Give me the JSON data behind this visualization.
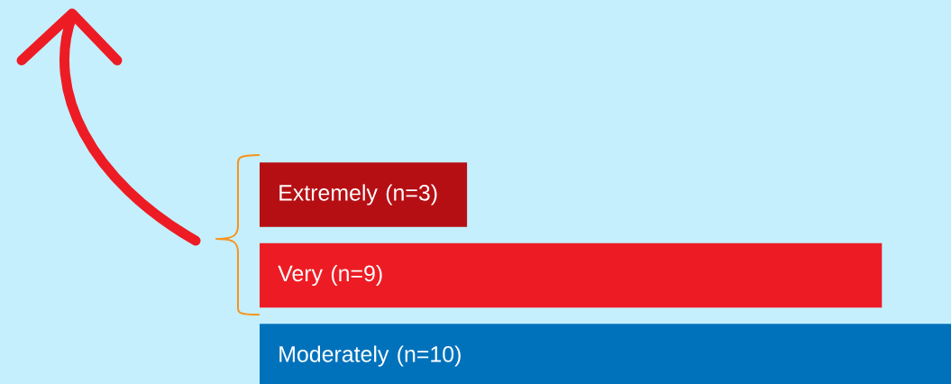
{
  "chart_data": {
    "type": "bar",
    "orientation": "horizontal",
    "categories": [
      "Extremely",
      "Very",
      "Moderately"
    ],
    "values": [
      3,
      9,
      10
    ],
    "value_labels": [
      "(n=3)",
      "(n=9)",
      "(n=10)"
    ],
    "colors": [
      "#b50f14",
      "#ed1c24",
      "#0072bc"
    ]
  }
}
